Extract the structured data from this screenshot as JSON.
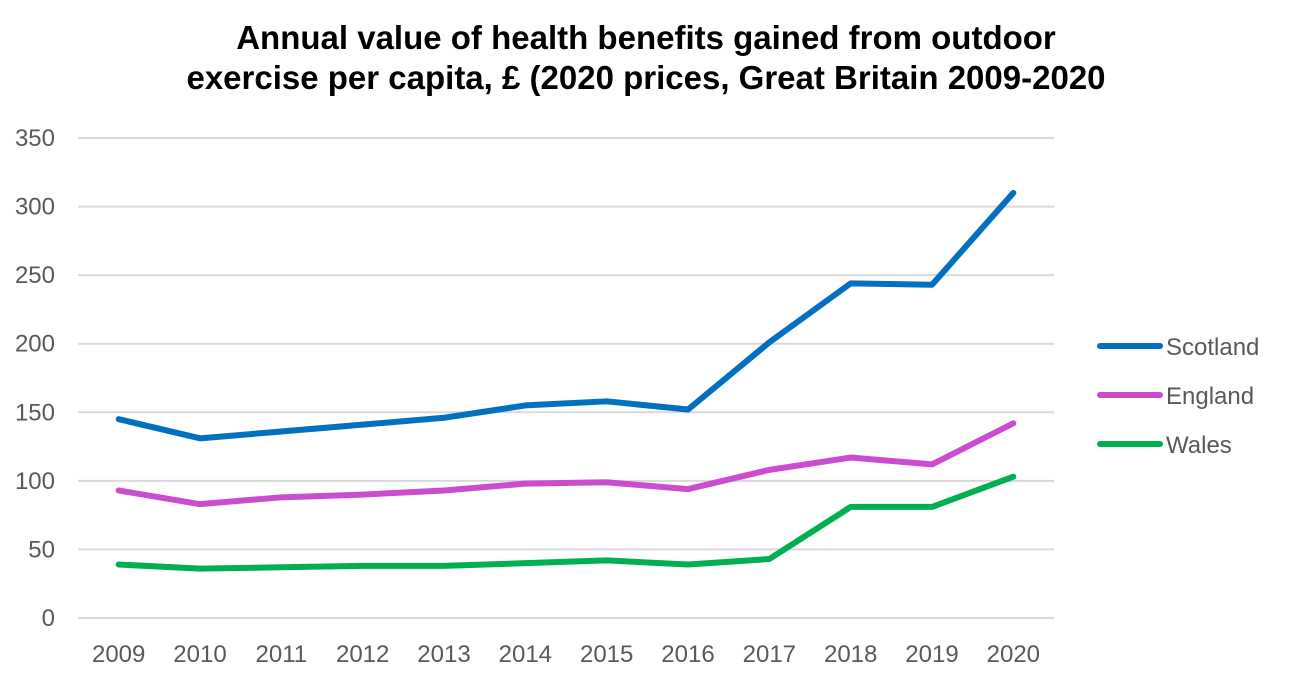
{
  "chart_data": {
    "type": "line",
    "title_lines": [
      "Annual value of health benefits gained from outdoor",
      "exercise per capita, £ (2020 prices, Great Britain 2009-2020"
    ],
    "categories": [
      "2009",
      "2010",
      "2011",
      "2012",
      "2013",
      "2014",
      "2015",
      "2016",
      "2017",
      "2018",
      "2019",
      "2020"
    ],
    "yticks": [
      "0",
      "50",
      "100",
      "150",
      "200",
      "250",
      "300",
      "350"
    ],
    "ylim": [
      0,
      350
    ],
    "grid": true,
    "legend_position": "right",
    "series": [
      {
        "name": "Scotland",
        "color": "#0070C0",
        "values": [
          145,
          131,
          136,
          141,
          146,
          155,
          158,
          152,
          201,
          244,
          243,
          310
        ]
      },
      {
        "name": "England",
        "color": "#CC4CD0",
        "values": [
          93,
          83,
          88,
          90,
          93,
          98,
          99,
          94,
          108,
          117,
          112,
          142
        ]
      },
      {
        "name": "Wales",
        "color": "#00B050",
        "values": [
          39,
          36,
          37,
          38,
          38,
          40,
          42,
          39,
          43,
          81,
          81,
          103
        ]
      }
    ]
  }
}
